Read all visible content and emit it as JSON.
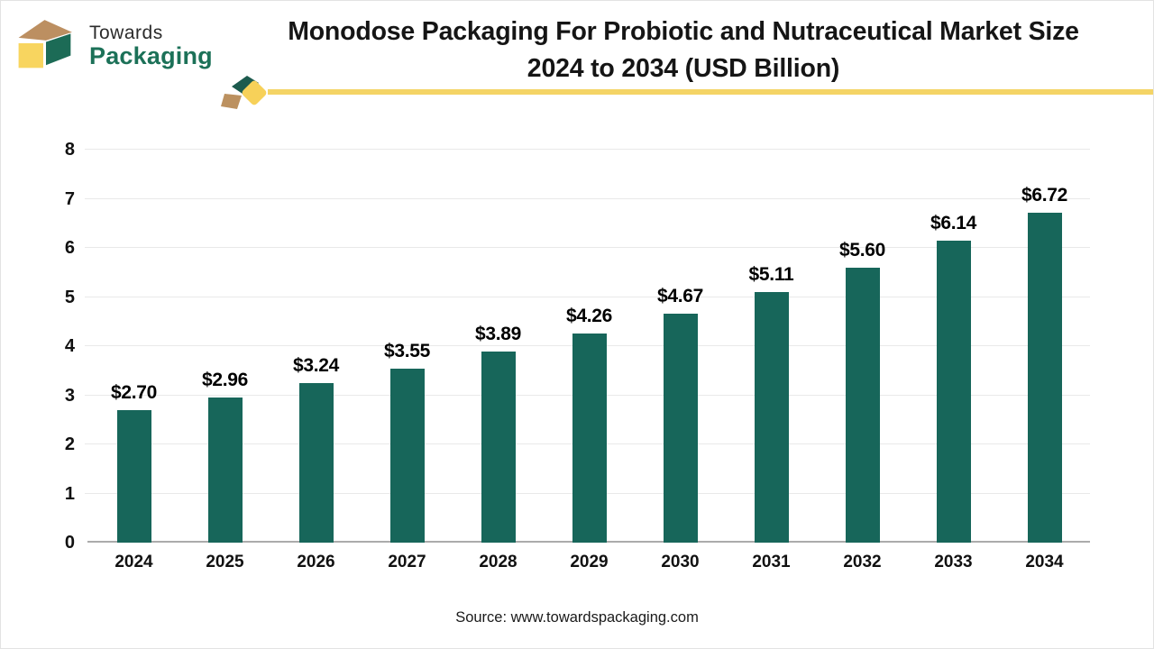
{
  "header": {
    "logo_line1": "Towards",
    "logo_line2": "Packaging",
    "title_line1": "Monodose Packaging For Probiotic and Nutraceutical Market Size",
    "title_line2": "2024 to 2034 (USD Billion)"
  },
  "chart_data": {
    "type": "bar",
    "title": "Monodose Packaging For Probiotic and Nutraceutical Market Size 2024 to 2034 (USD Billion)",
    "categories": [
      "2024",
      "2025",
      "2026",
      "2027",
      "2028",
      "2029",
      "2030",
      "2031",
      "2032",
      "2033",
      "2034"
    ],
    "values": [
      2.7,
      2.96,
      3.24,
      3.55,
      3.89,
      4.26,
      4.67,
      5.11,
      5.6,
      6.14,
      6.72
    ],
    "labels": [
      "$2.70",
      "$2.96",
      "$3.24",
      "$3.55",
      "$3.89",
      "$4.26",
      "$4.67",
      "$5.11",
      "$5.60",
      "$6.14",
      "$6.72"
    ],
    "xlabel": "",
    "ylabel": "",
    "ylim": [
      0,
      8
    ],
    "ytick_step": 1,
    "grid": true,
    "legend": false,
    "bar_color": "#17665a"
  },
  "footer": {
    "source": "Source: www.towardspackaging.com"
  },
  "colors": {
    "bar_teal": "#17665a",
    "logo_green": "#1c7158",
    "logo_tan": "#bc8f61",
    "logo_yellow": "#f8d55f",
    "accent_line_yellow": "#f4d466",
    "gridline": "#e9e9e9",
    "axis_line": "#ababab",
    "title_text": "#151515"
  }
}
